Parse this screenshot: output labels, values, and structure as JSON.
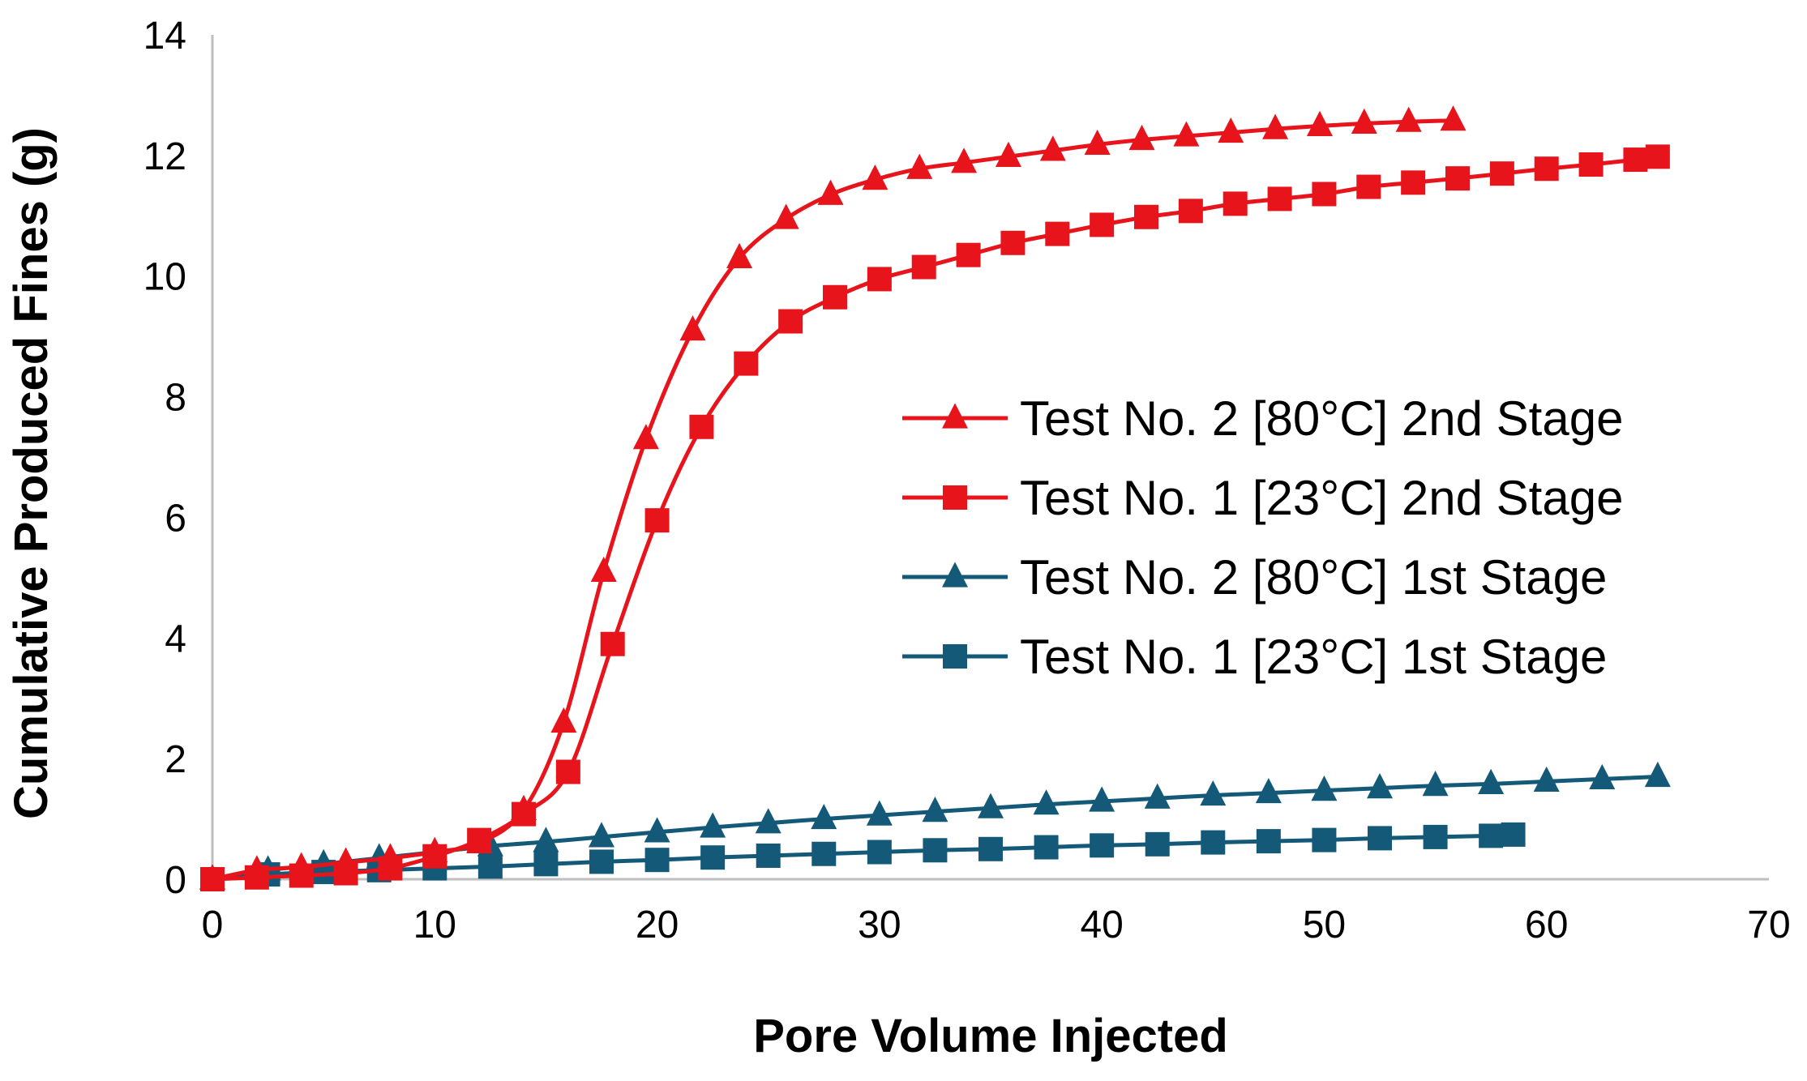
{
  "chart_data": {
    "type": "line",
    "title": "",
    "xlabel": "Pore Volume Injected",
    "ylabel": "Cumulative Produced Fines (g)",
    "xlim": [
      0,
      70
    ],
    "ylim": [
      0,
      14
    ],
    "xticks": [
      0,
      10,
      20,
      30,
      40,
      50,
      60,
      70
    ],
    "yticks": [
      0,
      2,
      4,
      6,
      8,
      10,
      12,
      14
    ],
    "grid": false,
    "legend_position": "right-center",
    "series": [
      {
        "name": "Test No. 2 [80°C] 2nd Stage",
        "color": "#e8141c",
        "marker": "triangle",
        "x": [
          0,
          2,
          4,
          6,
          8,
          10,
          12,
          14,
          15.8,
          17.6,
          19.5,
          21.6,
          23.7,
          25.8,
          27.8,
          29.8,
          31.8,
          33.8,
          35.8,
          37.8,
          39.8,
          41.8,
          43.8,
          45.8,
          47.8,
          49.8,
          51.8,
          53.8,
          55.8
        ],
        "values": [
          0,
          0.15,
          0.2,
          0.28,
          0.35,
          0.45,
          0.6,
          1.15,
          2.6,
          5.1,
          7.3,
          9.1,
          10.3,
          10.95,
          11.35,
          11.6,
          11.78,
          11.88,
          11.98,
          12.08,
          12.18,
          12.26,
          12.32,
          12.38,
          12.44,
          12.49,
          12.53,
          12.56,
          12.58
        ]
      },
      {
        "name": "Test No. 1 [23°C] 2nd Stage",
        "color": "#e8141c",
        "marker": "square",
        "x": [
          0,
          2,
          4,
          6,
          8,
          10,
          12,
          14,
          16,
          18,
          20,
          22,
          24,
          26,
          28,
          30,
          32,
          34,
          36,
          38,
          40,
          42,
          44,
          46,
          48,
          50,
          52,
          54,
          56,
          58,
          60,
          62,
          64,
          65
        ],
        "values": [
          0,
          0.03,
          0.06,
          0.1,
          0.18,
          0.38,
          0.65,
          1.08,
          1.78,
          3.9,
          5.95,
          7.5,
          8.55,
          9.25,
          9.65,
          9.95,
          10.15,
          10.35,
          10.55,
          10.7,
          10.85,
          10.98,
          11.08,
          11.2,
          11.28,
          11.36,
          11.48,
          11.55,
          11.62,
          11.7,
          11.78,
          11.85,
          11.93,
          11.98
        ]
      },
      {
        "name": "Test No. 2 [80°C] 1st Stage",
        "color": "#145a78",
        "marker": "triangle",
        "x": [
          0,
          2.5,
          5,
          7.5,
          10,
          12.5,
          15,
          17.5,
          20,
          22.5,
          25,
          27.5,
          30,
          32.5,
          35,
          37.5,
          40,
          42.5,
          45,
          47.5,
          50,
          52.5,
          55,
          57.5,
          60,
          62.5,
          65
        ],
        "values": [
          0,
          0.15,
          0.25,
          0.35,
          0.45,
          0.55,
          0.62,
          0.7,
          0.78,
          0.86,
          0.93,
          1.0,
          1.06,
          1.12,
          1.18,
          1.24,
          1.29,
          1.34,
          1.39,
          1.43,
          1.47,
          1.51,
          1.55,
          1.58,
          1.62,
          1.66,
          1.7
        ]
      },
      {
        "name": "Test No. 1 [23°C] 1st Stage",
        "color": "#145a78",
        "marker": "square",
        "x": [
          0,
          2.5,
          5,
          7.5,
          10,
          12.5,
          15,
          17.5,
          20,
          22.5,
          25,
          27.5,
          30,
          32.5,
          35,
          37.5,
          40,
          42.5,
          45,
          47.5,
          50,
          52.5,
          55,
          57.5,
          58.5
        ],
        "values": [
          0,
          0.08,
          0.12,
          0.15,
          0.18,
          0.21,
          0.25,
          0.29,
          0.32,
          0.36,
          0.39,
          0.42,
          0.45,
          0.48,
          0.5,
          0.53,
          0.56,
          0.58,
          0.61,
          0.63,
          0.65,
          0.68,
          0.7,
          0.72,
          0.74
        ]
      }
    ]
  }
}
